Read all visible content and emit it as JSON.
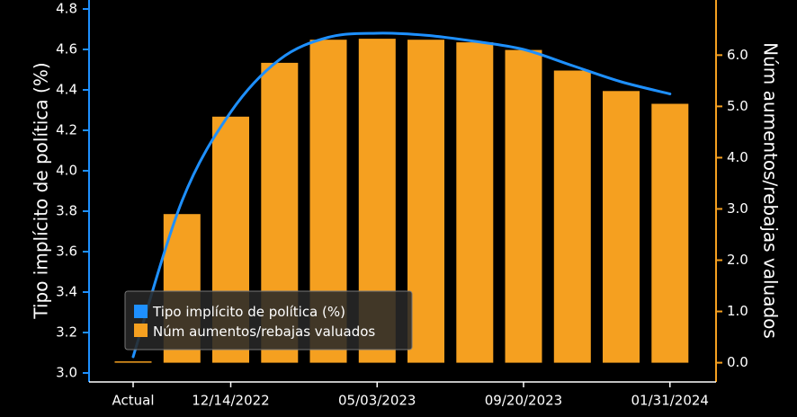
{
  "chart_data": {
    "type": "bar",
    "categories": [
      "Actual",
      "",
      "12/14/2022",
      "",
      "",
      "05/03/2023",
      "",
      "",
      "09/20/2023",
      "",
      "",
      "01/31/2024"
    ],
    "x_tick_labels": [
      "Actual",
      "12/14/2022",
      "05/03/2023",
      "09/20/2023",
      "01/31/2024"
    ],
    "x_tick_indices": [
      0,
      2,
      5,
      8,
      11
    ],
    "ylabel_left": "Tipo implícito de política (%)",
    "ylabel_right": "Núm aumentos/rebajas valuados",
    "ylim_left": [
      3.0,
      4.8
    ],
    "yticks_left": [
      "3.0",
      "3.2",
      "3.4",
      "3.6",
      "3.8",
      "4.0",
      "4.2",
      "4.4",
      "4.6",
      "4.8"
    ],
    "ylim_right": [
      -0.2,
      6.9
    ],
    "yticks_right": [
      "0.0",
      "1.0",
      "2.0",
      "3.0",
      "4.0",
      "5.0",
      "6.0"
    ],
    "series": [
      {
        "name": "Tipo implícito de política (%)",
        "type": "line",
        "axis": "left",
        "color": "#1e90ff",
        "values": [
          3.08,
          3.85,
          4.29,
          4.55,
          4.66,
          4.68,
          4.67,
          4.64,
          4.6,
          4.52,
          4.44,
          4.38
        ]
      },
      {
        "name": "Núm aumentos/rebajas valuados",
        "type": "bar",
        "axis": "right",
        "color": "#f5a020",
        "values": [
          0.0,
          2.9,
          4.8,
          5.85,
          6.3,
          6.32,
          6.3,
          6.25,
          6.1,
          5.7,
          5.3,
          5.05
        ]
      }
    ],
    "legend": {
      "position": "bottom-left",
      "entries": [
        "Tipo implícito de política (%)",
        "Núm aumentos/rebajas valuados"
      ]
    },
    "grid": false
  }
}
